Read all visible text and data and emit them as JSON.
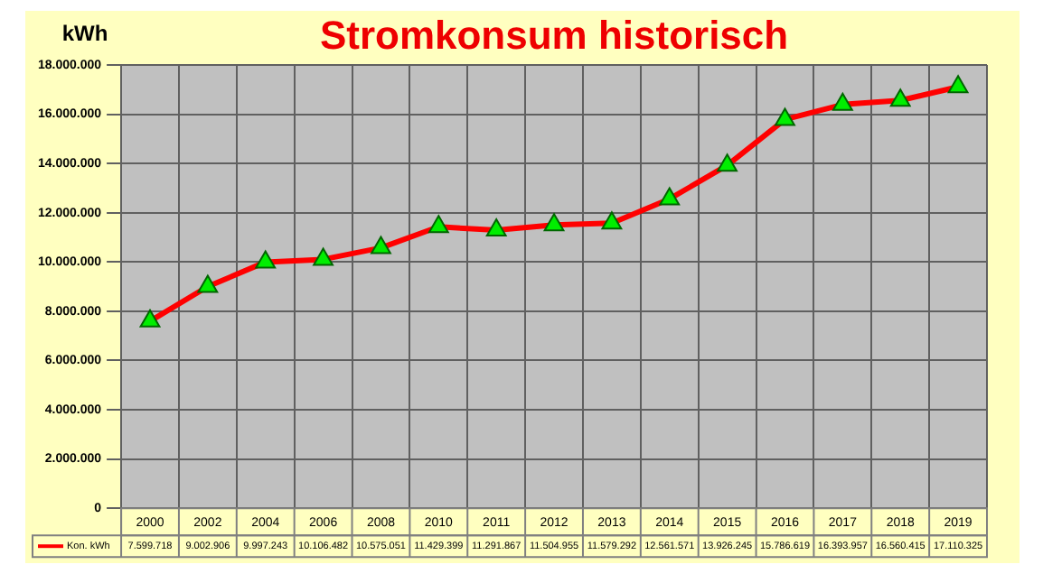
{
  "chart_data": {
    "type": "line",
    "title": "Stromkonsum historisch",
    "ylabel": "kWh",
    "categories": [
      "2000",
      "2002",
      "2004",
      "2006",
      "2008",
      "2010",
      "2011",
      "2012",
      "2013",
      "2014",
      "2015",
      "2016",
      "2017",
      "2018",
      "2019"
    ],
    "series": [
      {
        "name": "Kon. kWh",
        "color": "#ff0000",
        "values": [
          7599718,
          9002906,
          9997243,
          10106482,
          10575051,
          11429399,
          11291867,
          11504955,
          11579292,
          12561571,
          13926245,
          15786619,
          16393957,
          16560415,
          17110325
        ]
      }
    ],
    "ylim": [
      0,
      18000000
    ],
    "yticks": [
      {
        "value": 0,
        "label": "0"
      },
      {
        "value": 2000000,
        "label": "2.000.000"
      },
      {
        "value": 4000000,
        "label": "4.000.000"
      },
      {
        "value": 6000000,
        "label": "6.000.000"
      },
      {
        "value": 8000000,
        "label": "8.000.000"
      },
      {
        "value": 10000000,
        "label": "10.000.000"
      },
      {
        "value": 12000000,
        "label": "12.000.000"
      },
      {
        "value": 14000000,
        "label": "14.000.000"
      },
      {
        "value": 16000000,
        "label": "16.000.000"
      },
      {
        "value": 18000000,
        "label": "18.000.000"
      }
    ],
    "value_labels": [
      "7.599.718",
      "9.002.906",
      "9.997.243",
      "10.106.482",
      "10.575.051",
      "11.429.399",
      "11.291.867",
      "11.504.955",
      "11.579.292",
      "12.561.571",
      "13.926.245",
      "15.786.619",
      "16.393.957",
      "16.560.415",
      "17.110.325"
    ],
    "grid": true,
    "marker": "triangle",
    "legend": "bottom"
  }
}
